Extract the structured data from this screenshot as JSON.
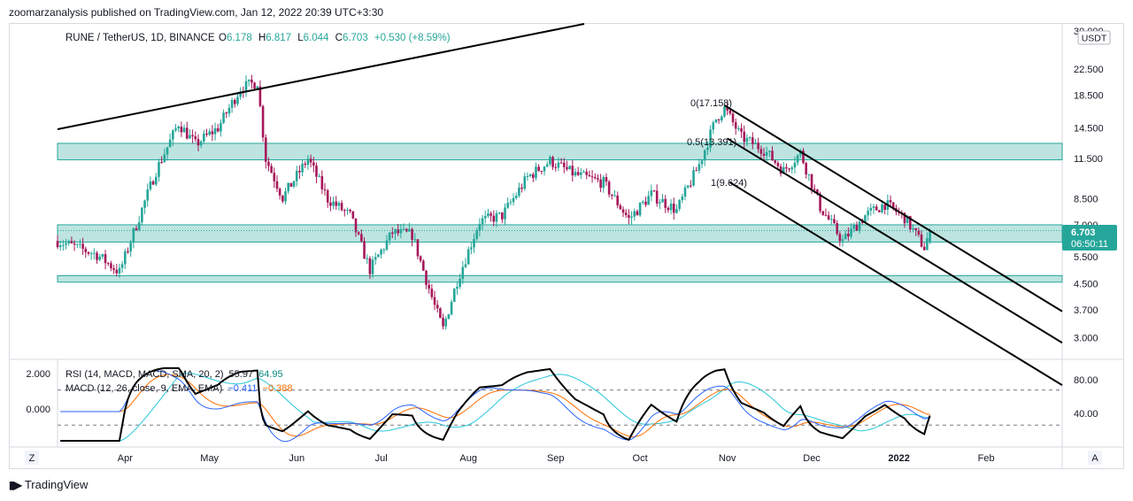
{
  "header": {
    "published": "zoomarzanalysis published on TradingView.com, Jan 12, 2022 20:39 UTC+3:30"
  },
  "legend": {
    "symbol": "RUNE / TetherUS, 1D, BINANCE",
    "o_label": "O",
    "o_value": "6.178",
    "h_label": "H",
    "h_value": "6.817",
    "l_label": "L",
    "l_value": "6.044",
    "c_label": "C",
    "c_value": "6.703",
    "change": "+0.530 (+8.59%)"
  },
  "price_axis": {
    "currency": "USDT",
    "ticks": [
      "30.000",
      "22.500",
      "18.500",
      "14.500",
      "11.500",
      "8.500",
      "7.000",
      "5.500",
      "4.500",
      "3.700",
      "3.000"
    ],
    "last_price": "6.703",
    "countdown": "06:50:11"
  },
  "fib_labels": [
    "0(17.158)",
    "0.5(13.391)",
    "1(9.624)"
  ],
  "indicators": {
    "rsi_label": "RSI (14, MACD, MACD, SMA, 20, 2)",
    "rsi_v1": "55.97",
    "rsi_v2": "64.95",
    "macd_label": "MACD (12, 26, close, 9, EMA, EMA)",
    "macd_v1": "−0.411",
    "macd_v2": "−0.388",
    "left_ticks": [
      "2.000",
      "0.000"
    ],
    "right_ticks": [
      "80.00",
      "40.00"
    ]
  },
  "time_axis": [
    "Apr",
    "May",
    "Jun",
    "Jul",
    "Aug",
    "Sep",
    "Oct",
    "Nov",
    "Dec",
    "2022",
    "Feb"
  ],
  "corner": {
    "z": "Z",
    "a": "A"
  },
  "footer": {
    "brand": "TradingView"
  },
  "colors": {
    "up": "#26a69a",
    "down": "#a6185a",
    "zone": "#b2dfdb",
    "zone_border": "#26a69a",
    "price_tag": "#26a69a"
  },
  "chart_data": {
    "type": "candlestick",
    "symbol": "RUNE / TetherUS",
    "interval": "1D",
    "y_scale": "log",
    "ylim": [
      2.6,
      31
    ],
    "x_range": [
      "2021-03-08",
      "2022-02-28"
    ],
    "last": {
      "open": 6.178,
      "high": 6.817,
      "low": 6.044,
      "close": 6.703,
      "change": 0.53,
      "change_pct": 8.59
    },
    "closes_approx": [
      {
        "date": "2021-03-08",
        "close": 6.2
      },
      {
        "date": "2021-03-22",
        "close": 5.6
      },
      {
        "date": "2021-03-30",
        "close": 4.9
      },
      {
        "date": "2021-04-05",
        "close": 7.0
      },
      {
        "date": "2021-04-12",
        "close": 10.5
      },
      {
        "date": "2021-04-20",
        "close": 15.0
      },
      {
        "date": "2021-04-26",
        "close": 12.8
      },
      {
        "date": "2021-05-04",
        "close": 14.5
      },
      {
        "date": "2021-05-12",
        "close": 19.5
      },
      {
        "date": "2021-05-18",
        "close": 20.5
      },
      {
        "date": "2021-05-21",
        "close": 11.5
      },
      {
        "date": "2021-05-27",
        "close": 8.6
      },
      {
        "date": "2021-06-05",
        "close": 11.5
      },
      {
        "date": "2021-06-12",
        "close": 8.5
      },
      {
        "date": "2021-06-20",
        "close": 7.5
      },
      {
        "date": "2021-06-27",
        "close": 5.0
      },
      {
        "date": "2021-07-05",
        "close": 6.6
      },
      {
        "date": "2021-07-12",
        "close": 6.5
      },
      {
        "date": "2021-07-20",
        "close": 3.8
      },
      {
        "date": "2021-07-23",
        "close": 3.2
      },
      {
        "date": "2021-07-28",
        "close": 4.6
      },
      {
        "date": "2021-08-05",
        "close": 7.2
      },
      {
        "date": "2021-08-13",
        "close": 7.5
      },
      {
        "date": "2021-08-22",
        "close": 10.0
      },
      {
        "date": "2021-08-30",
        "close": 11.3
      },
      {
        "date": "2021-09-08",
        "close": 10.2
      },
      {
        "date": "2021-09-18",
        "close": 9.6
      },
      {
        "date": "2021-09-27",
        "close": 7.3
      },
      {
        "date": "2021-10-05",
        "close": 8.8
      },
      {
        "date": "2021-10-14",
        "close": 7.8
      },
      {
        "date": "2021-10-22",
        "close": 11.0
      },
      {
        "date": "2021-10-28",
        "close": 15.5
      },
      {
        "date": "2021-10-31",
        "close": 16.8
      },
      {
        "date": "2021-11-06",
        "close": 13.5
      },
      {
        "date": "2021-11-14",
        "close": 12.3
      },
      {
        "date": "2021-11-21",
        "close": 10.5
      },
      {
        "date": "2021-11-27",
        "close": 12.0
      },
      {
        "date": "2021-12-04",
        "close": 8.0
      },
      {
        "date": "2021-12-12",
        "close": 6.2
      },
      {
        "date": "2021-12-20",
        "close": 7.5
      },
      {
        "date": "2021-12-27",
        "close": 8.2
      },
      {
        "date": "2022-01-03",
        "close": 7.4
      },
      {
        "date": "2022-01-10",
        "close": 5.9
      },
      {
        "date": "2022-01-12",
        "close": 6.703
      }
    ],
    "zones": [
      {
        "from": 11.4,
        "to": 12.9
      },
      {
        "from": 6.15,
        "to": 7.0
      },
      {
        "from": 4.55,
        "to": 4.78
      }
    ],
    "fib_channel": [
      {
        "level": "0",
        "price": 17.158
      },
      {
        "level": "0.5",
        "price": 13.391
      },
      {
        "level": "1",
        "price": 9.624
      }
    ],
    "indicators": {
      "rsi": {
        "value": 55.97,
        "value2": 64.95,
        "bands": [
          70,
          30
        ]
      },
      "macd": {
        "value": -0.411,
        "signal": -0.388
      }
    }
  }
}
